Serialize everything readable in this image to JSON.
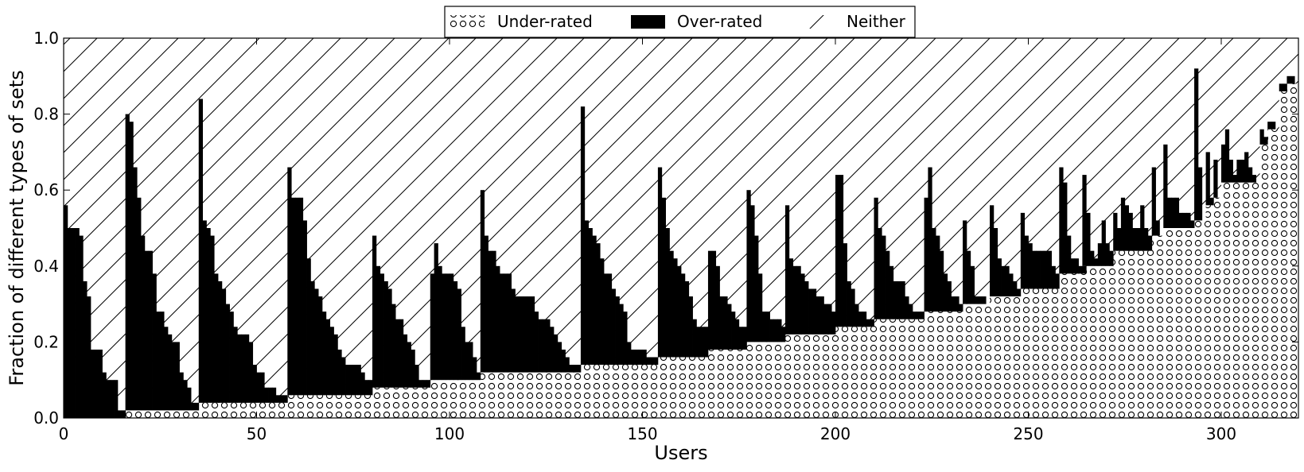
{
  "chart_data": {
    "type": "bar",
    "stacked": true,
    "xlabel": "Users",
    "ylabel": "Fraction of different types of sets",
    "xlim": [
      0,
      320
    ],
    "ylim": [
      0,
      1.0
    ],
    "x_ticks": [
      0,
      50,
      100,
      150,
      200,
      250,
      300
    ],
    "y_ticks": [
      0.0,
      0.2,
      0.4,
      0.6,
      0.8,
      1.0
    ],
    "legend_position": "top-center",
    "colors": {
      "over_rated": "#000000",
      "background": "#ffffff",
      "frame": "#000000"
    },
    "series": [
      {
        "name": "Under-rated",
        "pattern": "circles"
      },
      {
        "name": "Over-rated",
        "pattern": "solid-black"
      },
      {
        "name": "Neither",
        "pattern": "diagonal-hatch"
      }
    ],
    "groups": [
      {
        "x_start": 0,
        "under": 0.0,
        "over": [
          0.56,
          0.5,
          0.5,
          0.5,
          0.48,
          0.36,
          0.32,
          0.18,
          0.18,
          0.18,
          0.12,
          0.1,
          0.1,
          0.1,
          0.02,
          0.02
        ]
      },
      {
        "x_start": 16,
        "under": 0.02,
        "over": [
          0.78,
          0.76,
          0.64,
          0.56,
          0.46,
          0.42,
          0.42,
          0.36,
          0.26,
          0.26,
          0.22,
          0.2,
          0.18,
          0.18,
          0.1,
          0.08,
          0.06,
          0.02,
          0.02
        ]
      },
      {
        "x_start": 35,
        "under": 0.04,
        "over": [
          0.8,
          0.48,
          0.46,
          0.44,
          0.34,
          0.32,
          0.3,
          0.26,
          0.24,
          0.2,
          0.18,
          0.18,
          0.18,
          0.16,
          0.1,
          0.08,
          0.08,
          0.04,
          0.04,
          0.04,
          0.02,
          0.02,
          0.02
        ]
      },
      {
        "x_start": 58,
        "under": 0.06,
        "over": [
          0.6,
          0.52,
          0.52,
          0.52,
          0.46,
          0.36,
          0.3,
          0.28,
          0.26,
          0.22,
          0.2,
          0.18,
          0.16,
          0.12,
          0.1,
          0.08,
          0.08,
          0.08,
          0.08,
          0.06,
          0.04,
          0.04
        ]
      },
      {
        "x_start": 80,
        "under": 0.08,
        "over": [
          0.4,
          0.32,
          0.3,
          0.28,
          0.26,
          0.22,
          0.18,
          0.18,
          0.14,
          0.12,
          0.1,
          0.06,
          0.02,
          0.02,
          0.02
        ]
      },
      {
        "x_start": 95,
        "under": 0.1,
        "over": [
          0.28,
          0.36,
          0.3,
          0.28,
          0.28,
          0.28,
          0.26,
          0.24,
          0.14,
          0.1,
          0.1,
          0.06,
          0.02
        ]
      },
      {
        "x_start": 108,
        "under": 0.12,
        "over": [
          0.48,
          0.36,
          0.32,
          0.32,
          0.28,
          0.26,
          0.26,
          0.26,
          0.22,
          0.2,
          0.2,
          0.2,
          0.2,
          0.2,
          0.16,
          0.14,
          0.14,
          0.14,
          0.12,
          0.1,
          0.08,
          0.06,
          0.04,
          0.02,
          0.02,
          0.02
        ]
      },
      {
        "x_start": 134,
        "under": 0.14,
        "over": [
          0.68,
          0.38,
          0.36,
          0.34,
          0.32,
          0.28,
          0.24,
          0.24,
          0.2,
          0.18,
          0.16,
          0.14,
          0.06,
          0.04,
          0.04,
          0.04,
          0.04,
          0.02,
          0.02,
          0.02
        ]
      },
      {
        "x_start": 154,
        "under": 0.16,
        "over": [
          0.5,
          0.42,
          0.34,
          0.28,
          0.26,
          0.24,
          0.22,
          0.2,
          0.16,
          0.1,
          0.08,
          0.08,
          0.08
        ]
      },
      {
        "x_start": 167,
        "under": 0.18,
        "over": [
          0.26,
          0.26,
          0.22,
          0.14,
          0.14,
          0.12,
          0.1,
          0.08,
          0.06,
          0.06
        ]
      },
      {
        "x_start": 177,
        "under": 0.2,
        "over": [
          0.4,
          0.36,
          0.28,
          0.18,
          0.08,
          0.08,
          0.06,
          0.06,
          0.06,
          0.04
        ]
      },
      {
        "x_start": 187,
        "under": 0.22,
        "over": [
          0.34,
          0.2,
          0.18,
          0.18,
          0.16,
          0.14,
          0.12,
          0.12,
          0.1,
          0.1,
          0.08,
          0.08,
          0.06
        ]
      },
      {
        "x_start": 200,
        "under": 0.24,
        "over": [
          0.4,
          0.4,
          0.22,
          0.12,
          0.1,
          0.06,
          0.04,
          0.04,
          0.02,
          0.02
        ]
      },
      {
        "x_start": 210,
        "under": 0.26,
        "over": [
          0.32,
          0.24,
          0.22,
          0.18,
          0.14,
          0.1,
          0.1,
          0.1,
          0.06,
          0.04,
          0.02,
          0.02,
          0.02
        ]
      },
      {
        "x_start": 223,
        "under": 0.28,
        "over": [
          0.3,
          0.38,
          0.22,
          0.2,
          0.16,
          0.1,
          0.08,
          0.04,
          0.04,
          0.02
        ]
      },
      {
        "x_start": 233,
        "under": 0.3,
        "over": [
          0.22,
          0.14,
          0.1,
          0.02,
          0.02,
          0.02
        ]
      },
      {
        "x_start": 240,
        "under": 0.32,
        "over": [
          0.24,
          0.18,
          0.1,
          0.08,
          0.08,
          0.06,
          0.04,
          0.02
        ]
      },
      {
        "x_start": 248,
        "under": 0.34,
        "over": [
          0.2,
          0.14,
          0.12,
          0.1,
          0.1,
          0.1,
          0.1,
          0.1,
          0.06,
          0.04
        ]
      },
      {
        "x_start": 258,
        "under": 0.38,
        "over": [
          0.28,
          0.24,
          0.1,
          0.04,
          0.04,
          0.02,
          0.02
        ]
      },
      {
        "x_start": 264,
        "under": 0.4,
        "over": [
          0.24,
          0.14,
          0.04,
          0.02,
          0.06,
          0.12,
          0.06,
          0.04
        ]
      },
      {
        "x_start": 272,
        "under": 0.44,
        "over": [
          0.1,
          0.06,
          0.14,
          0.12,
          0.1,
          0.06,
          0.06,
          0.12,
          0.06,
          0.04
        ]
      },
      {
        "x_start": 282,
        "under": 0.48,
        "over": [
          0.18,
          0.04
        ]
      },
      {
        "x_start": 285,
        "under": 0.5,
        "over": [
          0.22,
          0.08,
          0.08,
          0.08,
          0.04,
          0.04,
          0.04,
          0.02
        ]
      },
      {
        "x_start": 293,
        "under": 0.52,
        "over": [
          0.4,
          0.14
        ]
      },
      {
        "x_start": 296,
        "under": 0.56,
        "over": [
          0.14,
          0.02
        ]
      },
      {
        "x_start": 298,
        "under": 0.58,
        "over": [
          0.1
        ]
      },
      {
        "x_start": 300,
        "under": 0.62,
        "over": [
          0.1,
          0.14,
          0.06,
          0.02,
          0.06,
          0.06,
          0.08,
          0.04,
          0.02
        ]
      },
      {
        "x_start": 310,
        "under": 0.72,
        "over": [
          0.04,
          0.02
        ]
      },
      {
        "x_start": 312,
        "under": 0.76,
        "over": [
          0.02,
          0.02
        ]
      },
      {
        "x_start": 315,
        "under": 0.86,
        "over": [
          0.02,
          0.02
        ]
      },
      {
        "x_start": 317,
        "under": 0.88,
        "over": [
          0.02,
          0.02
        ]
      }
    ]
  }
}
